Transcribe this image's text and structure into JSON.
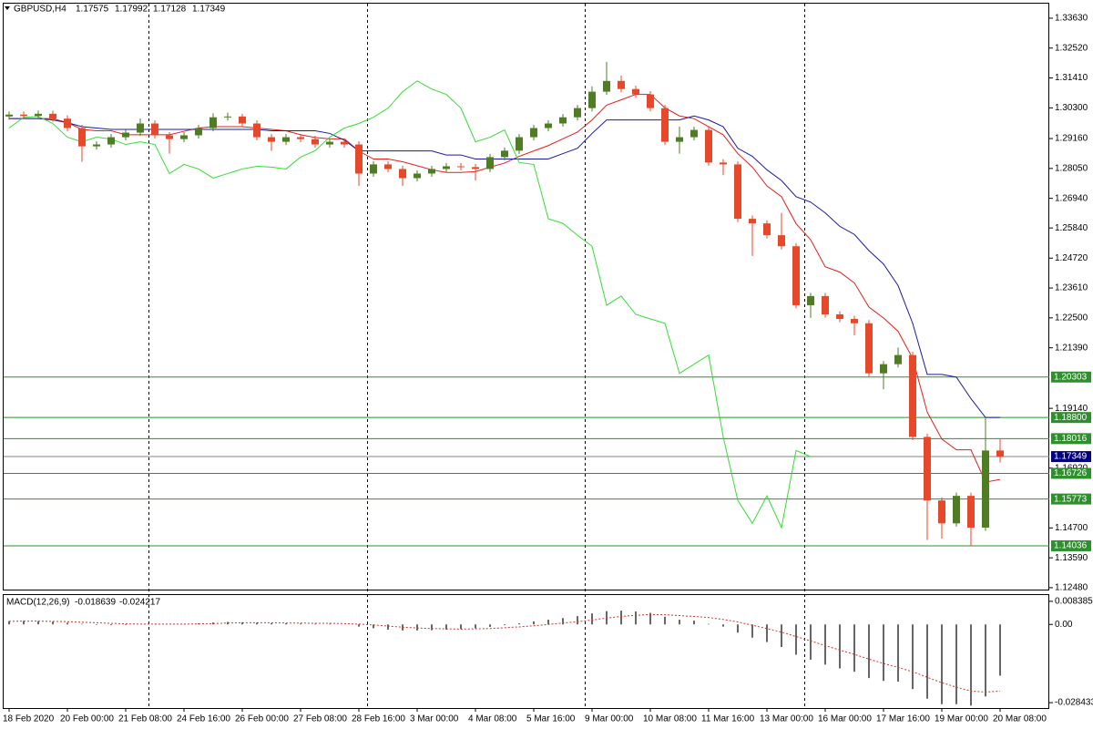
{
  "chart_data": {
    "type": "candlestick",
    "title": "GBPUSD,H4",
    "categories": [
      "18 Feb 2020",
      null,
      null,
      null,
      "20 Feb 00:00",
      null,
      null,
      null,
      "21 Feb 08:00",
      null,
      null,
      null,
      "24 Feb 16:00",
      null,
      null,
      null,
      "26 Feb 00:00",
      null,
      null,
      null,
      "27 Feb 08:00",
      null,
      null,
      null,
      "28 Feb 16:00",
      null,
      null,
      null,
      "3 Mar 00:00",
      null,
      null,
      null,
      "4 Mar 08:00",
      null,
      null,
      null,
      "5 Mar 16:00",
      null,
      null,
      null,
      "9 Mar 00:00",
      null,
      null,
      null,
      "10 Mar 08:00",
      null,
      null,
      null,
      "11 Mar 16:00",
      null,
      null,
      null,
      "13 Mar 00:00",
      null,
      null,
      null,
      "16 Mar 00:00",
      null,
      null,
      null,
      "17 Mar 16:00",
      null,
      null,
      null,
      "19 Mar 00:00",
      null,
      null,
      null,
      "20 Mar 08:00"
    ],
    "open": [
      1.2998,
      1.3005,
      1.3,
      1.3008,
      1.299,
      1.2955,
      1.2887,
      1.2894,
      1.2921,
      1.2938,
      1.2972,
      1.2928,
      1.2914,
      1.2928,
      1.2955,
      1.2995,
      1.2998,
      1.2972,
      1.2921,
      1.2904,
      1.2921,
      1.2914,
      1.2894,
      1.2904,
      1.2894,
      1.2786,
      1.282,
      1.2803,
      1.2769,
      1.2786,
      1.2803,
      1.2813,
      1.281,
      1.2803,
      1.2847,
      1.2871,
      1.2921,
      1.2955,
      1.2972,
      1.2995,
      1.3029,
      1.309,
      1.313,
      1.31,
      1.308,
      1.3029,
      1.2904,
      1.2921,
      1.2948,
      1.2827,
      1.282,
      1.2618,
      1.2601,
      1.2557,
      1.2516,
      1.2297,
      1.2331,
      1.2263,
      1.2246,
      1.223,
      1.2044,
      1.2078,
      1.2112,
      1.1808,
      1.1572,
      1.1487,
      1.1589,
      1.1471,
      1.17575
    ],
    "high": [
      1.3017,
      1.3017,
      1.302,
      1.302,
      1.3002,
      1.2967,
      1.2906,
      1.2933,
      1.295,
      1.299,
      1.2984,
      1.294,
      1.294,
      1.2967,
      1.301,
      1.3012,
      1.3008,
      1.2984,
      1.2933,
      1.2933,
      1.2933,
      1.2926,
      1.2916,
      1.2916,
      1.2906,
      1.2832,
      1.2832,
      1.2815,
      1.2798,
      1.2815,
      1.2825,
      1.2825,
      1.2822,
      1.2859,
      1.2883,
      1.2933,
      1.2967,
      1.2984,
      1.3007,
      1.3041,
      1.311,
      1.3201,
      1.315,
      1.3112,
      1.3092,
      1.3041,
      1.296,
      1.296,
      1.296,
      1.2839,
      1.2832,
      1.263,
      1.2613,
      1.264,
      1.2528,
      1.2343,
      1.2343,
      1.2275,
      1.2258,
      1.2242,
      1.209,
      1.214,
      1.2124,
      1.182,
      1.1584,
      1.1601,
      1.1601,
      1.188,
      1.17992
    ],
    "low": [
      1.2986,
      1.2988,
      1.2988,
      1.2978,
      1.2943,
      1.283,
      1.2875,
      1.2882,
      1.2909,
      1.2926,
      1.2916,
      1.286,
      1.2902,
      1.2916,
      1.2943,
      1.2983,
      1.296,
      1.2909,
      1.287,
      1.2892,
      1.2902,
      1.2882,
      1.2882,
      1.2882,
      1.274,
      1.2774,
      1.2791,
      1.274,
      1.2757,
      1.2774,
      1.2791,
      1.2798,
      1.276,
      1.2791,
      1.2835,
      1.2859,
      1.2909,
      1.2943,
      1.296,
      1.2983,
      1.3017,
      1.3078,
      1.3088,
      1.3068,
      1.3017,
      1.2892,
      1.286,
      1.2909,
      1.2815,
      1.278,
      1.2606,
      1.248,
      1.2545,
      1.2504,
      1.2285,
      1.225,
      1.2251,
      1.2234,
      1.2185,
      1.2032,
      1.1985,
      1.2066,
      1.1796,
      1.1425,
      1.143,
      1.1475,
      1.1404,
      1.1459,
      1.17128
    ],
    "close": [
      1.3005,
      1.3,
      1.3008,
      1.299,
      1.2955,
      1.2887,
      1.2894,
      1.2921,
      1.2938,
      1.2972,
      1.2928,
      1.2914,
      1.2928,
      1.2955,
      1.2995,
      1.2998,
      1.2972,
      1.2921,
      1.2904,
      1.2921,
      1.2914,
      1.2894,
      1.2904,
      1.2894,
      1.2786,
      1.282,
      1.2803,
      1.2769,
      1.2786,
      1.2803,
      1.2813,
      1.281,
      1.2803,
      1.2847,
      1.2871,
      1.2921,
      1.2955,
      1.2972,
      1.2995,
      1.3029,
      1.309,
      1.313,
      1.31,
      1.308,
      1.3029,
      1.2904,
      1.2921,
      1.2948,
      1.2827,
      1.282,
      1.2618,
      1.2601,
      1.2557,
      1.2516,
      1.2297,
      1.2331,
      1.2263,
      1.2246,
      1.223,
      1.2044,
      1.2078,
      1.2112,
      1.1808,
      1.1572,
      1.1487,
      1.1589,
      1.1471,
      1.17575,
      1.17349
    ],
    "up_color": "#4e7d24",
    "down_color": "#e8482a",
    "ylim": [
      1.1241,
      1.3417
    ],
    "yticks": [
      {
        "value": 1.3363,
        "label": "1.33630"
      },
      {
        "value": 1.3252,
        "label": "1.32520"
      },
      {
        "value": 1.3141,
        "label": "1.31410"
      },
      {
        "value": 1.303,
        "label": "1.30300"
      },
      {
        "value": 1.2916,
        "label": "1.29160"
      },
      {
        "value": 1.2805,
        "label": "1.28050"
      },
      {
        "value": 1.2694,
        "label": "1.26940"
      },
      {
        "value": 1.2584,
        "label": "1.25840"
      },
      {
        "value": 1.2472,
        "label": "1.24720"
      },
      {
        "value": 1.2361,
        "label": "1.23610"
      },
      {
        "value": 1.225,
        "label": "1.22500"
      },
      {
        "value": 1.2139,
        "label": "1.21390"
      },
      {
        "value": 1.1914,
        "label": "1.19140"
      },
      {
        "value": 1.1692,
        "label": "1.16920"
      },
      {
        "value": 1.147,
        "label": "1.14700"
      },
      {
        "value": 1.1359,
        "label": "1.13590"
      },
      {
        "value": 1.1248,
        "label": "1.12480"
      }
    ],
    "levels": [
      1.20303,
      {
        "value": 1.188,
        "label": "1.18800"
      },
      1.18016,
      1.16726,
      1.15773,
      1.14036
    ],
    "level_color": "#2f8f2f",
    "bid_color": "#00007f",
    "lines": [
      {
        "color": "#e0201b",
        "values": [
          1.299,
          1.299,
          1.299,
          1.299,
          1.2975,
          1.295,
          1.2945,
          1.2945,
          1.293,
          1.293,
          1.293,
          1.293,
          1.2943,
          1.2955,
          1.296,
          1.296,
          1.296,
          1.2955,
          1.295,
          1.2945,
          1.293,
          1.292,
          1.2915,
          1.2915,
          1.287,
          1.284,
          1.284,
          1.283,
          1.2815,
          1.28,
          1.279,
          1.279,
          1.2793,
          1.281,
          1.2825,
          1.285,
          1.287,
          1.289,
          1.2915,
          1.294,
          1.2985,
          1.304,
          1.306,
          1.308,
          1.308,
          1.303,
          1.3,
          1.299,
          1.296,
          1.293,
          1.286,
          1.281,
          1.274,
          1.27,
          1.26,
          1.254,
          1.244,
          1.242,
          1.238,
          1.229,
          1.225,
          1.22,
          1.21,
          1.19,
          1.18,
          1.176,
          1.176,
          1.164,
          1.165
        ]
      },
      {
        "color": "#1a1aa0",
        "values": [
          1.299,
          1.299,
          1.299,
          1.2985,
          1.2975,
          1.296,
          1.2955,
          1.295,
          1.295,
          1.295,
          1.295,
          1.295,
          1.295,
          1.295,
          1.295,
          1.295,
          1.295,
          1.295,
          1.2945,
          1.2945,
          1.2945,
          1.2945,
          1.2935,
          1.291,
          1.287,
          1.287,
          1.287,
          1.287,
          1.287,
          1.287,
          1.2855,
          1.2855,
          1.284,
          1.284,
          1.284,
          1.284,
          1.284,
          1.284,
          1.286,
          1.288,
          1.2935,
          1.2985,
          1.2985,
          1.2985,
          1.2985,
          1.2985,
          1.2985,
          1.3,
          1.2985,
          1.296,
          1.288,
          1.285,
          1.28,
          1.276,
          1.27,
          1.268,
          1.264,
          1.259,
          1.256,
          1.25,
          1.245,
          1.237,
          1.223,
          1.204,
          1.204,
          1.203,
          1.195,
          1.188,
          1.188
        ]
      },
      {
        "color": "#33dd33",
        "values": [
          1.2955,
          1.2995,
          1.2998,
          1.2972,
          1.2921,
          1.2904,
          1.2921,
          1.2914,
          1.2894,
          1.2904,
          1.2894,
          1.2786,
          1.282,
          1.2803,
          1.2769,
          1.2786,
          1.2803,
          1.2813,
          1.281,
          1.2803,
          1.2847,
          1.2871,
          1.2921,
          1.2955,
          1.2972,
          1.2995,
          1.3029,
          1.309,
          1.313,
          1.31,
          1.308,
          1.3029,
          1.2904,
          1.2921,
          1.2948,
          1.2827,
          1.282,
          1.2618,
          1.2601,
          1.2557,
          1.2516,
          1.2297,
          1.2331,
          1.2263,
          1.2246,
          1.223,
          1.2044,
          1.2078,
          1.2112,
          1.1808,
          1.1572,
          1.1487,
          1.1589,
          1.1471,
          1.17575,
          1.17349,
          null,
          null,
          null,
          null,
          null,
          null,
          null,
          null,
          null,
          null,
          null,
          null,
          null
        ]
      }
    ],
    "macd": {
      "title": "MACD(12,26,9)",
      "histogram": [
        0.0012,
        0.0013,
        0.0012,
        0.001,
        0.0006,
        0.0002,
        -0.0002,
        -0.0003,
        -0.0002,
        0.0,
        0.0001,
        0.0,
        0.0001,
        0.0004,
        0.0007,
        0.0009,
        0.0008,
        0.0006,
        0.0004,
        0.0004,
        0.0003,
        0.0002,
        0.0002,
        0.0,
        -0.0008,
        -0.0014,
        -0.0019,
        -0.0022,
        -0.0022,
        -0.0021,
        -0.0019,
        -0.0017,
        -0.0014,
        -0.0009,
        -0.0003,
        0.0004,
        0.0011,
        0.0017,
        0.0023,
        0.003,
        0.004,
        0.0048,
        0.005,
        0.0047,
        0.0042,
        0.0028,
        0.0017,
        0.0014,
        0.0002,
        -0.0008,
        -0.003,
        -0.0048,
        -0.0064,
        -0.0082,
        -0.011,
        -0.0128,
        -0.0146,
        -0.016,
        -0.0172,
        -0.0195,
        -0.0205,
        -0.0208,
        -0.0235,
        -0.027,
        -0.029,
        -0.029,
        -0.0295,
        -0.0262,
        -0.018639
      ],
      "signal": [
        0.0011,
        0.0012,
        0.0012,
        0.0011,
        0.001,
        0.0008,
        0.0006,
        0.0004,
        0.0002,
        0.0001,
        0.0001,
        0.0001,
        0.0001,
        0.0002,
        0.0003,
        0.0005,
        0.0006,
        0.0006,
        0.0006,
        0.0005,
        0.0005,
        0.0004,
        0.0004,
        0.0003,
        0.0001,
        -0.0002,
        -0.0006,
        -0.001,
        -0.0013,
        -0.0015,
        -0.0016,
        -0.0017,
        -0.0016,
        -0.0015,
        -0.0012,
        -0.0009,
        -0.0005,
        0.0,
        0.0005,
        0.001,
        0.0016,
        0.0023,
        0.0029,
        0.0033,
        0.0036,
        0.0035,
        0.0032,
        0.0029,
        0.0025,
        0.0018,
        0.0009,
        -0.0003,
        -0.0015,
        -0.0028,
        -0.0044,
        -0.006,
        -0.0077,
        -0.0093,
        -0.0109,
        -0.0126,
        -0.0142,
        -0.0156,
        -0.0172,
        -0.0192,
        -0.0212,
        -0.0228,
        -0.0242,
        -0.0246,
        -0.024217
      ],
      "hist_color": "#333333",
      "signal_color": "#d0342c",
      "ylim": [
        -0.03039,
        0.01067
      ],
      "yticks": [
        0.008385,
        {
          "value": 0,
          "label": "0.00"
        },
        -0.028433
      ]
    }
  }
}
